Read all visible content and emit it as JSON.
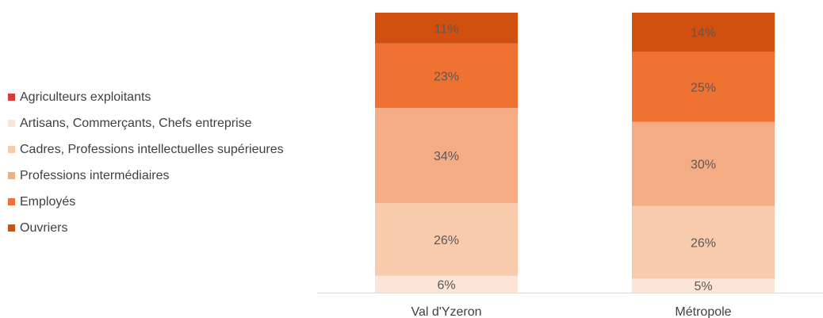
{
  "chart_data": {
    "type": "bar",
    "stacked": true,
    "categories": [
      "Val d'Yzeron",
      "Métropole"
    ],
    "series": [
      {
        "name": "Agriculteurs exploitants",
        "color": "#d63b3b",
        "values": [
          0,
          0
        ],
        "labels": [
          "",
          ""
        ]
      },
      {
        "name": "Artisans, Commerçants, Chefs entreprise",
        "color": "#fce4d6",
        "values": [
          6,
          5
        ],
        "labels": [
          "6%",
          "5%"
        ]
      },
      {
        "name": "Cadres, Professions intellectuelles supérieures",
        "color": "#f8cbad",
        "values": [
          26,
          26
        ],
        "labels": [
          "26%",
          "26%"
        ]
      },
      {
        "name": "Professions intermédiaires",
        "color": "#f4ac84",
        "values": [
          34,
          30
        ],
        "labels": [
          "34%",
          "30%"
        ]
      },
      {
        "name": "Employés",
        "color": "#f07232",
        "values": [
          23,
          25
        ],
        "labels": [
          "23%",
          "25%"
        ]
      },
      {
        "name": "Ouvriers",
        "color": "#d1500f",
        "values": [
          11,
          14
        ],
        "labels": [
          "11%",
          "14%"
        ]
      }
    ],
    "legend_position": "left",
    "grid": false
  }
}
